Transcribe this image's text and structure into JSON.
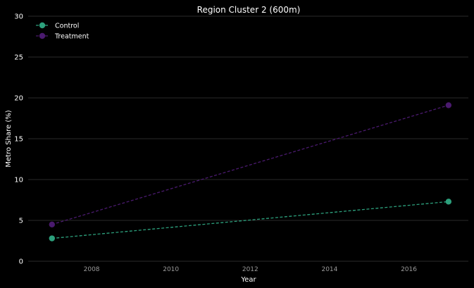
{
  "chart_data": {
    "type": "line",
    "title": "Region Cluster 2 (600m)",
    "xlabel": "Year",
    "ylabel": "Metro Share (%)",
    "xlim": [
      2006.4,
      2017.5
    ],
    "ylim": [
      0,
      30
    ],
    "xticks": [
      2008,
      2010,
      2012,
      2014,
      2016
    ],
    "yticks": [
      0,
      5,
      10,
      15,
      20,
      25,
      30
    ],
    "grid": "horizontal",
    "legend_position": "top-left",
    "series": [
      {
        "name": "Control",
        "color": "#2ca07c",
        "linestyle": "dashed",
        "marker": "circle",
        "x": [
          2007,
          2017
        ],
        "y": [
          2.8,
          7.3
        ]
      },
      {
        "name": "Treatment",
        "color": "#4a1a6e",
        "linestyle": "dashed",
        "marker": "circle",
        "x": [
          2007,
          2017
        ],
        "y": [
          4.5,
          19.1
        ]
      }
    ]
  }
}
